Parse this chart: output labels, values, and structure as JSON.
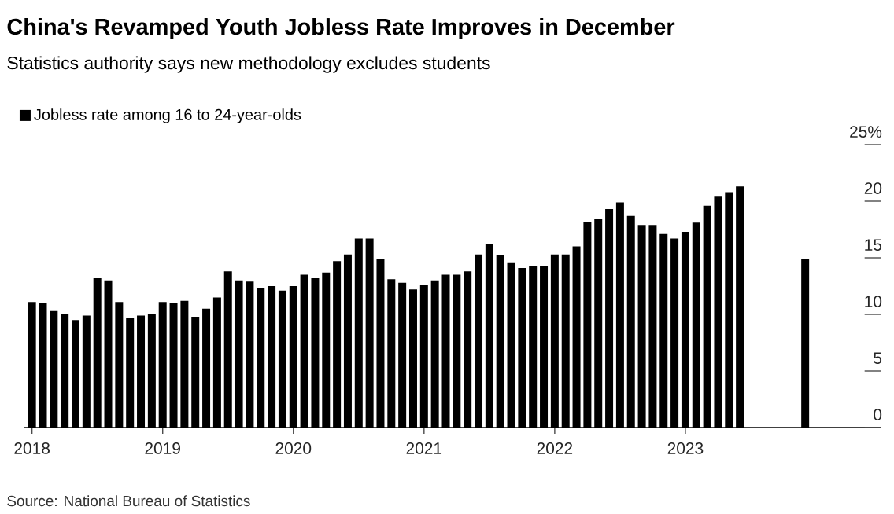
{
  "chart_data": {
    "type": "bar",
    "title": "China's Revamped Youth Jobless Rate Improves in December",
    "subtitle": "Statistics authority says new methodology excludes students",
    "x": [
      "2018-01",
      "2018-02",
      "2018-03",
      "2018-04",
      "2018-05",
      "2018-06",
      "2018-07",
      "2018-08",
      "2018-09",
      "2018-10",
      "2018-11",
      "2018-12",
      "2019-01",
      "2019-02",
      "2019-03",
      "2019-04",
      "2019-05",
      "2019-06",
      "2019-07",
      "2019-08",
      "2019-09",
      "2019-10",
      "2019-11",
      "2019-12",
      "2020-01",
      "2020-02",
      "2020-03",
      "2020-04",
      "2020-05",
      "2020-06",
      "2020-07",
      "2020-08",
      "2020-09",
      "2020-10",
      "2020-11",
      "2020-12",
      "2021-01",
      "2021-02",
      "2021-03",
      "2021-04",
      "2021-05",
      "2021-06",
      "2021-07",
      "2021-08",
      "2021-09",
      "2021-10",
      "2021-11",
      "2021-12",
      "2022-01",
      "2022-02",
      "2022-03",
      "2022-04",
      "2022-05",
      "2022-06",
      "2022-07",
      "2022-08",
      "2022-09",
      "2022-10",
      "2022-11",
      "2022-12",
      "2023-01",
      "2023-02",
      "2023-03",
      "2023-04",
      "2023-05",
      "2023-06",
      "2023-12"
    ],
    "series": [
      {
        "name": "Jobless rate among 16 to 24-year-olds",
        "color": "#000000",
        "values": [
          11.1,
          11.0,
          10.3,
          10.0,
          9.5,
          9.9,
          13.2,
          13.0,
          11.1,
          9.7,
          9.9,
          10.0,
          11.1,
          11.0,
          11.2,
          9.8,
          10.5,
          11.5,
          13.8,
          13.0,
          12.9,
          12.3,
          12.5,
          12.1,
          12.5,
          13.5,
          13.2,
          13.7,
          14.7,
          15.3,
          16.7,
          16.7,
          14.9,
          13.1,
          12.8,
          12.2,
          12.6,
          13.0,
          13.5,
          13.5,
          13.8,
          15.3,
          16.2,
          15.2,
          14.6,
          14.1,
          14.3,
          14.3,
          15.3,
          15.3,
          16.0,
          18.2,
          18.4,
          19.3,
          19.9,
          18.7,
          17.9,
          17.9,
          17.1,
          16.7,
          17.3,
          18.1,
          19.6,
          20.4,
          20.8,
          21.3,
          14.9
        ]
      }
    ],
    "xlim": [
      "2017-12-08",
      "2024-07-01"
    ],
    "xticks": [
      {
        "value": "2018-01",
        "label": "2018"
      },
      {
        "value": "2019-01",
        "label": "2019"
      },
      {
        "value": "2020-01",
        "label": "2020"
      },
      {
        "value": "2021-01",
        "label": "2021"
      },
      {
        "value": "2022-01",
        "label": "2022"
      },
      {
        "value": "2023-01",
        "label": "2023"
      }
    ],
    "ylim": [
      0,
      25
    ],
    "yticks": [
      0,
      5,
      10,
      15,
      20,
      {
        "value": 25,
        "label": "25%"
      }
    ],
    "grid": false,
    "legend": "top left",
    "annotations": [
      "Source: National Bureau of Statistics"
    ]
  }
}
